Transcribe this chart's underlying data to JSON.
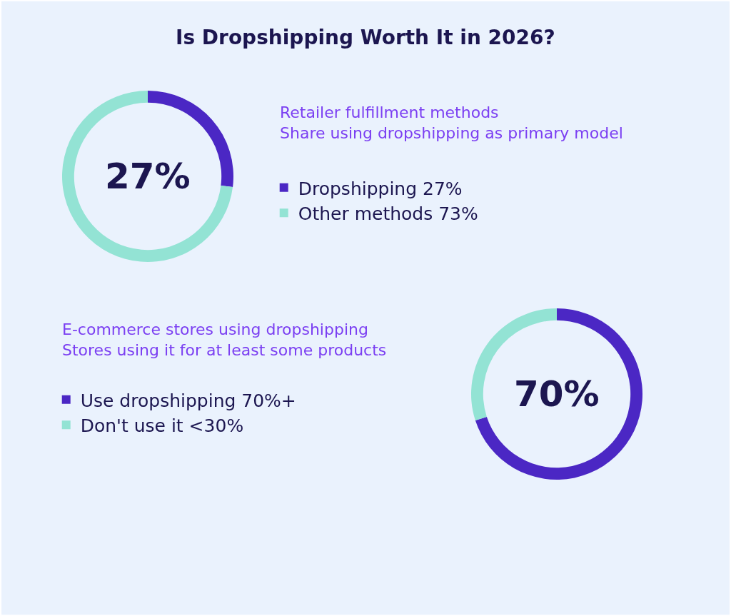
{
  "chart_data": [
    {
      "type": "donut",
      "title": "Is Dropshipping Worth It in 2026?",
      "subtitle": "Retailer fulfillment methods\nShare using dropshipping as primary model",
      "categories": [
        "Dropshipping 27%",
        "Other methods 73%"
      ],
      "values": [
        27,
        73
      ],
      "colors": [
        "#4b27c4",
        "#93e3d4"
      ],
      "annotations": [
        "27%"
      ],
      "legend": "right"
    },
    {
      "type": "donut",
      "subtitle": "E-commerce stores using dropshipping\nStores using it for at least some products",
      "categories": [
        "Use dropshipping 70%+",
        "Don't use it <30%"
      ],
      "values": [
        70,
        30
      ],
      "colors": [
        "#4b27c4",
        "#93e3d4"
      ],
      "annotations": [
        "70%"
      ],
      "legend": "left"
    }
  ]
}
